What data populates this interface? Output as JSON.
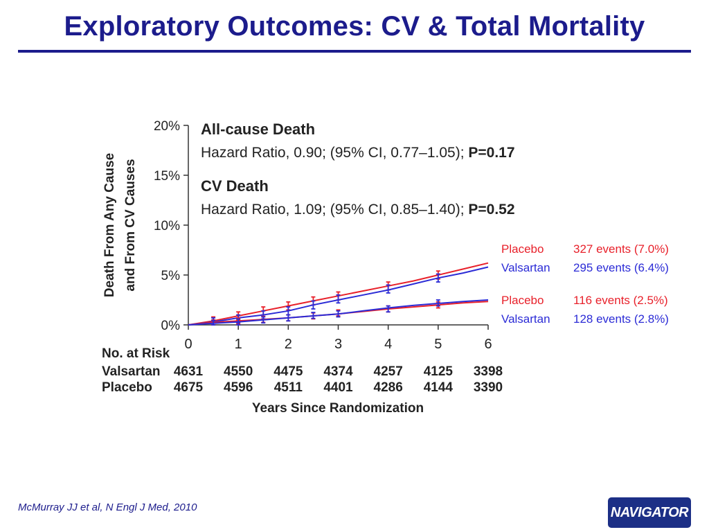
{
  "slide": {
    "title": "Exploratory Outcomes: CV & Total Mortality",
    "citation": "McMurray JJ et al, N Engl J Med, 2010",
    "logo_text": "NAVIGATOR"
  },
  "chart_data": {
    "type": "line",
    "ylabel_lines": [
      "Death From Any Cause",
      "and From CV Causes"
    ],
    "xlabel": "Years Since Randomization",
    "xlim": [
      0,
      6
    ],
    "ylim": [
      0,
      20
    ],
    "x_ticks": [
      "0",
      "1",
      "2",
      "3",
      "4",
      "5",
      "6"
    ],
    "y_ticks": [
      "0%",
      "5%",
      "10%",
      "15%",
      "20%"
    ],
    "annotations": [
      {
        "heading": "All-cause Death",
        "text": "Hazard Ratio, 0.90; (95% CI, 0.77–1.05); ",
        "pvalue": "P=0.17"
      },
      {
        "heading": "CV Death",
        "text": "Hazard Ratio, 1.09; (95% CI, 0.85–1.40); ",
        "pvalue": "P=0.52"
      }
    ],
    "colors": {
      "placebo": "#e8202a",
      "valsartan": "#2b2bd6",
      "axis": "#333333"
    },
    "series": [
      {
        "name": "Placebo",
        "group": "all-cause",
        "events": "327 events (7.0%)",
        "color": "#e8202a",
        "x": [
          0,
          0.5,
          1,
          1.5,
          2,
          2.5,
          3,
          3.5,
          4,
          4.5,
          5,
          5.5,
          6
        ],
        "y": [
          0,
          0.4,
          0.9,
          1.4,
          1.9,
          2.4,
          2.9,
          3.4,
          3.9,
          4.4,
          5.0,
          5.6,
          6.2
        ],
        "err_x": [
          0.5,
          1,
          1.5,
          2,
          2.5,
          3,
          4,
          5
        ],
        "err_y": [
          0.4,
          0.9,
          1.4,
          1.9,
          2.4,
          2.9,
          3.9,
          5.0
        ],
        "err": 0.4
      },
      {
        "name": "Valsartan",
        "group": "all-cause",
        "events": "295 events (6.4%)",
        "color": "#2b2bd6",
        "x": [
          0,
          0.5,
          1,
          1.5,
          2,
          2.5,
          3,
          3.5,
          4,
          4.5,
          5,
          5.5,
          6
        ],
        "y": [
          0,
          0.3,
          0.7,
          1.0,
          1.4,
          2.0,
          2.5,
          3.0,
          3.5,
          4.1,
          4.7,
          5.2,
          5.8
        ],
        "err_x": [
          0.5,
          1,
          1.5,
          2,
          2.5,
          3,
          4,
          5
        ],
        "err_y": [
          0.3,
          0.6,
          1.0,
          1.4,
          2.0,
          2.6,
          3.6,
          4.7
        ],
        "err": 0.4
      },
      {
        "name": "Placebo",
        "group": "cv",
        "events": "116 events (2.5%)",
        "color": "#e8202a",
        "x": [
          0,
          0.5,
          1,
          1.5,
          2,
          2.5,
          3,
          3.5,
          4,
          4.5,
          5,
          5.5,
          6
        ],
        "y": [
          0,
          0.25,
          0.4,
          0.55,
          0.7,
          0.9,
          1.1,
          1.35,
          1.6,
          1.8,
          2.0,
          2.2,
          2.35
        ],
        "err_x": [
          0.5,
          1,
          1.5,
          2,
          2.5,
          3,
          4,
          5
        ],
        "err_y": [
          0.2,
          0.4,
          0.55,
          0.7,
          0.9,
          1.2,
          1.6,
          2.0
        ],
        "err": 0.3
      },
      {
        "name": "Valsartan",
        "group": "cv",
        "events": "128 events (2.8%)",
        "color": "#2b2bd6",
        "x": [
          0,
          0.5,
          1,
          1.5,
          2,
          2.5,
          3,
          3.5,
          4,
          4.5,
          5,
          5.5,
          6
        ],
        "y": [
          0,
          0.15,
          0.3,
          0.5,
          0.7,
          0.9,
          1.1,
          1.4,
          1.7,
          1.95,
          2.15,
          2.35,
          2.5
        ],
        "err_x": [
          0.5,
          1,
          1.5,
          2,
          2.5,
          3,
          4,
          5
        ],
        "err_y": [
          0.15,
          0.3,
          0.5,
          0.7,
          0.95,
          1.1,
          1.6,
          2.2
        ],
        "err": 0.3
      }
    ],
    "risk_table": {
      "title": "No. at Risk",
      "rows": [
        {
          "label": "Valsartan",
          "values": [
            "4631",
            "4550",
            "4475",
            "4374",
            "4257",
            "4125",
            "3398"
          ]
        },
        {
          "label": "Placebo",
          "values": [
            "4675",
            "4596",
            "4511",
            "4401",
            "4286",
            "4144",
            "3390"
          ]
        }
      ]
    }
  }
}
